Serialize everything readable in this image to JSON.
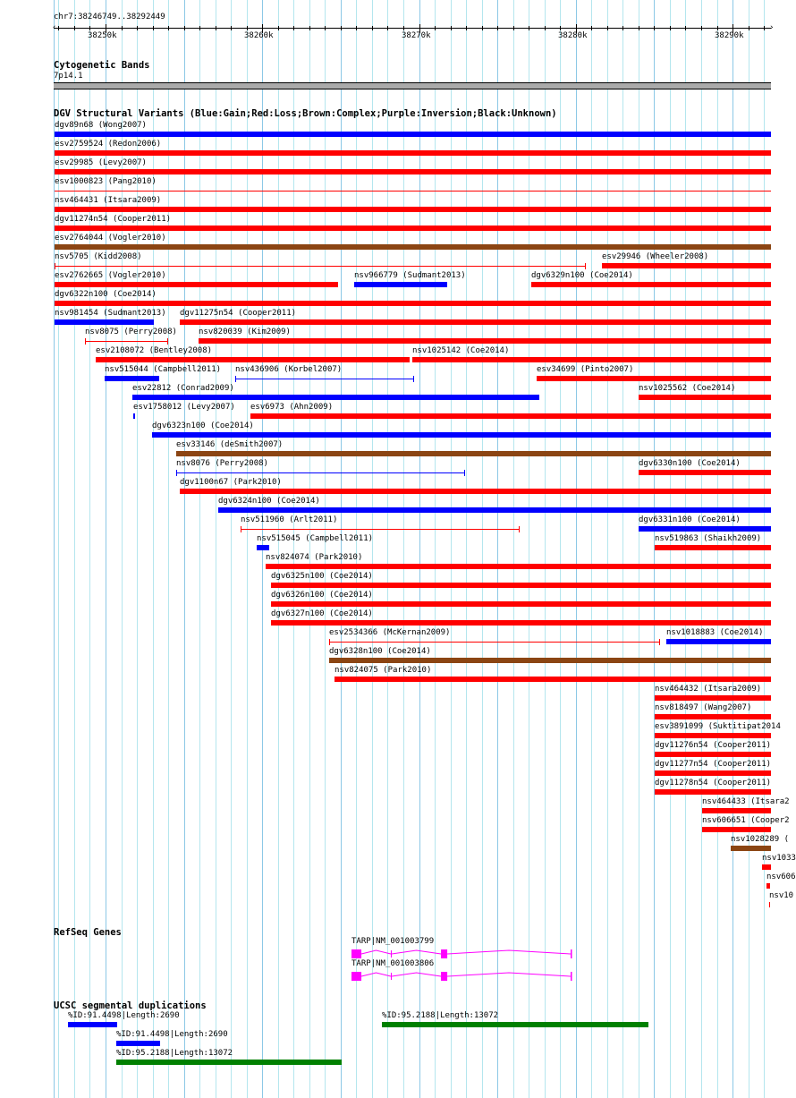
{
  "ruler": {
    "region": "chr7:38246749..38292449",
    "start": 38246749,
    "end": 38292449,
    "tick_labels": [
      {
        "pos": 38250000,
        "label": "38250k"
      },
      {
        "pos": 38260000,
        "label": "38260k"
      },
      {
        "pos": 38270000,
        "label": "38270k"
      },
      {
        "pos": 38280000,
        "label": "38280k"
      },
      {
        "pos": 38290000,
        "label": "38290k"
      }
    ]
  },
  "cyto": {
    "title": "Cytogenetic Bands",
    "band": "7p14.1",
    "color": "#aaaaaa"
  },
  "colors": {
    "gain": "#0000ff",
    "loss": "#ff0000",
    "complex": "#8b4513",
    "gene": "#ff00ff",
    "segdup_blue": "#0000ff",
    "segdup_green": "#008000"
  },
  "dgv": {
    "title": "DGV Structural Variants (Blue:Gain;Red:Loss;Brown:Complex;Purple:Inversion;Black:Unknown)",
    "rows": [
      [
        {
          "label": "dgv89n68 (Wong2007)",
          "start": 38246749,
          "end": 38292449,
          "type": "gain",
          "style": "bar"
        }
      ],
      [
        {
          "label": "esv2759524 (Redon2006)",
          "start": 38246749,
          "end": 38292449,
          "type": "loss",
          "style": "bar"
        }
      ],
      [
        {
          "label": "esv29985 (Levy2007)",
          "start": 38246749,
          "end": 38292449,
          "type": "loss",
          "style": "bar"
        }
      ],
      [
        {
          "label": "esv1000823 (Pang2010)",
          "start": 38246749,
          "end": 38292449,
          "type": "loss",
          "style": "line"
        }
      ],
      [
        {
          "label": "nsv464431 (Itsara2009)",
          "start": 38246749,
          "end": 38292449,
          "type": "loss",
          "style": "bar"
        }
      ],
      [
        {
          "label": "dgv11274n54 (Cooper2011)",
          "start": 38246749,
          "end": 38292449,
          "type": "loss",
          "style": "bar"
        }
      ],
      [
        {
          "label": "esv2764044 (Vogler2010)",
          "start": 38246749,
          "end": 38292449,
          "type": "complex",
          "style": "bar"
        }
      ],
      [
        {
          "label": "nsv5705 (Kidd2008)",
          "start": 38246749,
          "end": 38280640,
          "type": "loss",
          "style": "error"
        },
        {
          "label": "esv29946 (Wheeler2008)",
          "start": 38281670,
          "end": 38292449,
          "type": "loss",
          "style": "bar"
        }
      ],
      [
        {
          "label": "esv2762665 (Vogler2010)",
          "start": 38246749,
          "end": 38264840,
          "type": "loss",
          "style": "bar"
        },
        {
          "label": "nsv966779 (Sudmant2013)",
          "start": 38265860,
          "end": 38271800,
          "type": "gain",
          "style": "bar"
        },
        {
          "label": "dgv6329n100 (Coe2014)",
          "start": 38277160,
          "end": 38292449,
          "type": "loss",
          "style": "bar"
        }
      ],
      [
        {
          "label": "dgv6322n100 (Coe2014)",
          "start": 38246749,
          "end": 38292449,
          "type": "loss",
          "style": "bar"
        }
      ],
      [
        {
          "label": "nsv981454 (Sudmant2013)",
          "start": 38246749,
          "end": 38253080,
          "type": "gain",
          "style": "bar"
        },
        {
          "label": "dgv11275n54 (Cooper2011)",
          "start": 38254740,
          "end": 38292449,
          "type": "loss",
          "style": "bar"
        }
      ],
      [
        {
          "label": "nsv8075 (Perry2008)",
          "start": 38248690,
          "end": 38254000,
          "type": "loss",
          "style": "error"
        },
        {
          "label": "nsv820039 (Kim2009)",
          "start": 38255940,
          "end": 38292449,
          "type": "loss",
          "style": "bar"
        }
      ],
      [
        {
          "label": "esv2108072 (Bentley2008)",
          "start": 38249370,
          "end": 38269400,
          "type": "loss",
          "style": "bar"
        },
        {
          "label": "nsv1025142 (Coe2014)",
          "start": 38269570,
          "end": 38292449,
          "type": "loss",
          "style": "bar"
        }
      ],
      [
        {
          "label": "nsv515044 (Campbell2011)",
          "start": 38249950,
          "end": 38253420,
          "type": "gain",
          "style": "bar"
        },
        {
          "label": "nsv436906 (Korbel2007)",
          "start": 38258280,
          "end": 38269690,
          "type": "gain",
          "style": "error"
        },
        {
          "label": "esv34699 (Pinto2007)",
          "start": 38277500,
          "end": 38292449,
          "type": "loss",
          "style": "bar"
        }
      ],
      [
        {
          "label": "esv22812 (Conrad2009)",
          "start": 38251710,
          "end": 38277670,
          "type": "gain",
          "style": "bar"
        },
        {
          "label": "nsv1025562 (Coe2014)",
          "start": 38284010,
          "end": 38292449,
          "type": "loss",
          "style": "bar"
        }
      ],
      [
        {
          "label": "esv1758012 (Levy2007)",
          "start": 38251770,
          "end": 38251880,
          "type": "gain",
          "style": "bar"
        },
        {
          "label": "esv6973 (Ahn2009)",
          "start": 38259240,
          "end": 38292449,
          "type": "loss",
          "style": "bar"
        }
      ],
      [
        {
          "label": "dgv6323n100 (Coe2014)",
          "start": 38252970,
          "end": 38292449,
          "type": "gain",
          "style": "bar"
        }
      ],
      [
        {
          "label": "esv33146 (deSmith2007)",
          "start": 38254510,
          "end": 38292449,
          "type": "complex",
          "style": "bar"
        }
      ],
      [
        {
          "label": "nsv8076 (Perry2008)",
          "start": 38254510,
          "end": 38272940,
          "type": "gain",
          "style": "error"
        },
        {
          "label": "dgv6330n100 (Coe2014)",
          "start": 38284010,
          "end": 38292449,
          "type": "loss",
          "style": "bar"
        }
      ],
      [
        {
          "label": "dgv1100n67 (Park2010)",
          "start": 38254740,
          "end": 38292449,
          "type": "loss",
          "style": "bar"
        }
      ],
      [
        {
          "label": "dgv6324n100 (Coe2014)",
          "start": 38257190,
          "end": 38292449,
          "type": "gain",
          "style": "bar"
        }
      ],
      [
        {
          "label": "nsv511960 (Arlt2011)",
          "start": 38258620,
          "end": 38276420,
          "type": "loss",
          "style": "error"
        },
        {
          "label": "dgv6331n100 (Coe2014)",
          "start": 38284010,
          "end": 38292449,
          "type": "gain",
          "style": "bar"
        }
      ],
      [
        {
          "label": "nsv515045 (Campbell2011)",
          "start": 38259640,
          "end": 38260440,
          "type": "gain",
          "style": "bar"
        },
        {
          "label": "nsv519863 (Shaikh2009)",
          "start": 38285030,
          "end": 38292449,
          "type": "loss",
          "style": "bar"
        }
      ],
      [
        {
          "label": "nsv824074 (Park2010)",
          "start": 38260210,
          "end": 38292449,
          "type": "loss",
          "style": "bar"
        }
      ],
      [
        {
          "label": "dgv6325n100 (Coe2014)",
          "start": 38260560,
          "end": 38292449,
          "type": "loss",
          "style": "bar"
        }
      ],
      [
        {
          "label": "dgv6326n100 (Coe2014)",
          "start": 38260560,
          "end": 38292449,
          "type": "loss",
          "style": "bar"
        }
      ],
      [
        {
          "label": "dgv6327n100 (Coe2014)",
          "start": 38260560,
          "end": 38292449,
          "type": "loss",
          "style": "bar"
        }
      ],
      [
        {
          "label": "esv2534366 (McKernan2009)",
          "start": 38264270,
          "end": 38285380,
          "type": "loss",
          "style": "error"
        },
        {
          "label": "nsv1018883 (Coe2014)",
          "start": 38285780,
          "end": 38292449,
          "type": "gain",
          "style": "bar"
        }
      ],
      [
        {
          "label": "dgv6328n100 (Coe2014)",
          "start": 38264270,
          "end": 38292449,
          "type": "complex",
          "style": "bar"
        }
      ],
      [
        {
          "label": "nsv824075 (Park2010)",
          "start": 38264610,
          "end": 38292449,
          "type": "loss",
          "style": "bar"
        }
      ],
      [
        {
          "label": "nsv464432 (Itsara2009)",
          "start": 38285030,
          "end": 38292449,
          "type": "loss",
          "style": "bar"
        }
      ],
      [
        {
          "label": "nsv818497 (Wang2007)",
          "start": 38285030,
          "end": 38292449,
          "type": "loss",
          "style": "bar"
        }
      ],
      [
        {
          "label": "esv3891099 (Suktitipat2014",
          "start": 38285030,
          "end": 38292449,
          "type": "loss",
          "style": "bar"
        }
      ],
      [
        {
          "label": "dgv11276n54 (Cooper2011)",
          "start": 38285030,
          "end": 38292449,
          "type": "loss",
          "style": "bar"
        }
      ],
      [
        {
          "label": "dgv11277n54 (Cooper2011)",
          "start": 38285030,
          "end": 38292449,
          "type": "loss",
          "style": "bar"
        }
      ],
      [
        {
          "label": "dgv11278n54 (Cooper2011)",
          "start": 38285030,
          "end": 38292449,
          "type": "loss",
          "style": "bar"
        }
      ],
      [
        {
          "label": "nsv464433 (Itsara2",
          "start": 38288060,
          "end": 38292449,
          "type": "loss",
          "style": "bar"
        }
      ],
      [
        {
          "label": "nsv606651 (Cooper2",
          "start": 38288060,
          "end": 38292449,
          "type": "loss",
          "style": "bar"
        }
      ],
      [
        {
          "label": "nsv1028289 (",
          "start": 38289880,
          "end": 38292449,
          "type": "complex",
          "style": "bar"
        }
      ],
      [
        {
          "label": "nsv1033",
          "start": 38291880,
          "end": 38292449,
          "type": "loss",
          "style": "bar"
        }
      ],
      [
        {
          "label": "nsv606",
          "start": 38292170,
          "end": 38292390,
          "type": "loss",
          "style": "bar"
        }
      ],
      [
        {
          "label": "nsv10",
          "start": 38292340,
          "end": 38292400,
          "type": "loss",
          "style": "bar"
        }
      ]
    ]
  },
  "refseq": {
    "title": "RefSeq Genes",
    "genes": [
      {
        "label": "TARP|NM_001003799",
        "start": 38265690,
        "end": 38279670,
        "exons": [
          [
            38265690,
            38266320
          ],
          [
            38268200,
            38268260
          ],
          [
            38271400,
            38271800
          ]
        ]
      },
      {
        "label": "TARP|NM_001003806",
        "start": 38265690,
        "end": 38279670,
        "exons": [
          [
            38265690,
            38266320
          ],
          [
            38268200,
            38268260
          ],
          [
            38271400,
            38271800
          ]
        ]
      }
    ]
  },
  "segdups": {
    "title": "UCSC segmental duplications",
    "items": [
      {
        "label": "%ID:91.4498|Length:2690",
        "start": 38247600,
        "end": 38250740,
        "color": "segdup_blue",
        "row": 0
      },
      {
        "label": "%ID:95.2188|Length:13072",
        "start": 38267630,
        "end": 38284630,
        "color": "segdup_green",
        "row": 0
      },
      {
        "label": "%ID:91.4498|Length:2690",
        "start": 38250690,
        "end": 38253480,
        "color": "segdup_blue",
        "row": 1
      },
      {
        "label": "%ID:95.2188|Length:13072",
        "start": 38250690,
        "end": 38265060,
        "color": "segdup_green",
        "row": 2
      }
    ]
  }
}
